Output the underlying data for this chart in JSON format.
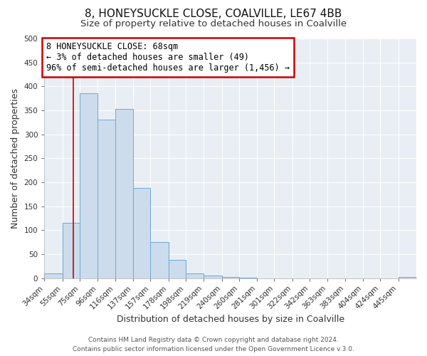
{
  "title": "8, HONEYSUCKLE CLOSE, COALVILLE, LE67 4BB",
  "subtitle": "Size of property relative to detached houses in Coalville",
  "xlabel": "Distribution of detached houses by size in Coalville",
  "ylabel": "Number of detached properties",
  "bin_labels": [
    "34sqm",
    "55sqm",
    "75sqm",
    "96sqm",
    "116sqm",
    "137sqm",
    "157sqm",
    "178sqm",
    "198sqm",
    "219sqm",
    "240sqm",
    "260sqm",
    "281sqm",
    "301sqm",
    "322sqm",
    "342sqm",
    "363sqm",
    "383sqm",
    "404sqm",
    "424sqm",
    "445sqm"
  ],
  "bin_edges": [
    34,
    55,
    75,
    96,
    116,
    137,
    157,
    178,
    198,
    219,
    240,
    260,
    281,
    301,
    322,
    342,
    363,
    383,
    404,
    424,
    445,
    466
  ],
  "bar_values": [
    10,
    115,
    385,
    330,
    353,
    188,
    75,
    38,
    10,
    5,
    2,
    1,
    0,
    0,
    0,
    0,
    0,
    0,
    0,
    0,
    2
  ],
  "bar_color": "#ccdcec",
  "bar_edgecolor": "#6aaad4",
  "vline_x": 68,
  "vline_color": "#cc0000",
  "ylim": [
    0,
    500
  ],
  "annotation_box_text": "8 HONEYSUCKLE CLOSE: 68sqm\n← 3% of detached houses are smaller (49)\n96% of semi-detached houses are larger (1,456) →",
  "annotation_box_color": "#cc0000",
  "footer_line1": "Contains HM Land Registry data © Crown copyright and database right 2024.",
  "footer_line2": "Contains public sector information licensed under the Open Government Licence v.3.0.",
  "fig_background": "#ffffff",
  "plot_background": "#e8eef4",
  "grid_color": "#ffffff",
  "title_fontsize": 11,
  "subtitle_fontsize": 9.5,
  "axis_label_fontsize": 9,
  "tick_fontsize": 7.5,
  "annotation_fontsize": 8.5,
  "footer_fontsize": 6.5
}
